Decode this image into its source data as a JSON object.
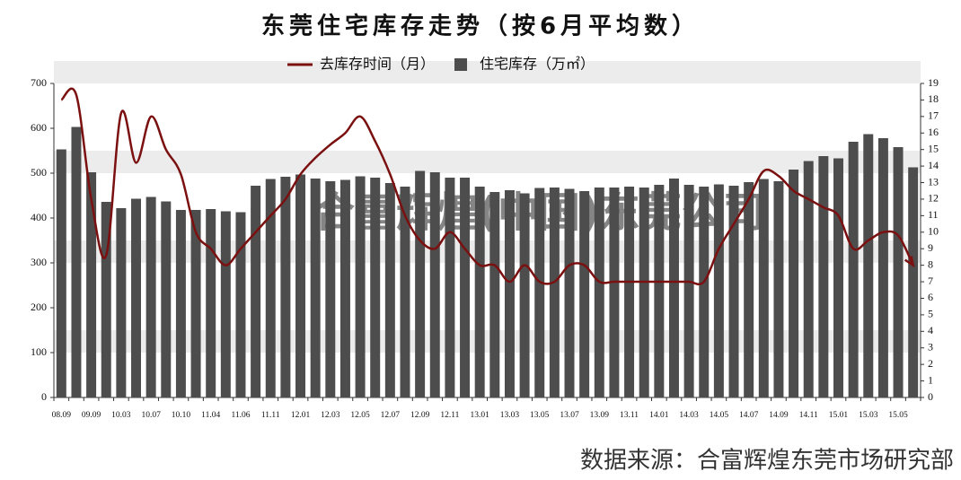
{
  "chart_data": {
    "type": "bar-line",
    "title": "东莞住宅库存走势（按6月平均数）",
    "watermark": "合富辉煌(中国)东莞公司",
    "source": "数据来源：合富辉煌东莞市场研究部",
    "categories": [
      "08.09",
      null,
      "09.09",
      null,
      "10.03",
      null,
      "10.07",
      null,
      "10.10",
      null,
      "11.04",
      null,
      "11.06",
      null,
      "11.11",
      null,
      "12.01",
      null,
      "12.03",
      null,
      "12.05",
      null,
      "12.07",
      null,
      "12.09",
      null,
      "12.11",
      null,
      "13.01",
      null,
      "13.03",
      null,
      "13.05",
      null,
      "13.07",
      null,
      "13.09",
      null,
      "13.11",
      null,
      "14.01",
      null,
      "14.03",
      null,
      "14.05",
      null,
      "14.07",
      null,
      "14.09",
      null,
      "14.11",
      null,
      "15.01",
      null,
      "15.03",
      null,
      "15.05",
      null
    ],
    "series": [
      {
        "name": "住宅库存（万㎡）",
        "type": "bar",
        "axis": "y",
        "color": "#4d4d4d",
        "values": [
          553,
          603,
          502,
          436,
          422,
          443,
          447,
          437,
          418,
          418,
          420,
          415,
          413,
          472,
          487,
          492,
          497,
          488,
          482,
          485,
          493,
          490,
          478,
          470,
          505,
          502,
          490,
          490,
          470,
          458,
          462,
          455,
          467,
          468,
          465,
          460,
          468,
          468,
          470,
          468,
          474,
          488,
          474,
          470,
          475,
          472,
          480,
          487,
          482,
          508,
          527,
          538,
          533,
          570,
          587,
          578,
          558,
          513
        ]
      },
      {
        "name": "去库存时间（月）",
        "type": "line",
        "axis": "y2",
        "color": "#7b1010",
        "values": [
          18,
          18.3,
          12,
          8.6,
          17.2,
          14.2,
          17,
          15,
          13.5,
          10,
          9,
          8,
          9,
          10,
          11,
          12,
          13.5,
          14.5,
          15.3,
          16,
          17,
          15.5,
          13.5,
          11,
          9.5,
          9,
          10,
          9,
          8,
          8,
          7,
          8,
          7,
          7,
          8,
          8,
          7,
          7,
          7,
          7,
          7,
          7,
          7,
          7,
          9,
          10.5,
          12,
          13.7,
          13.4,
          12.5,
          12,
          11.5,
          11,
          9,
          9.5,
          10,
          9.8,
          8
        ]
      }
    ],
    "ylim": [
      0,
      700
    ],
    "yticks": [
      0,
      100,
      200,
      300,
      400,
      500,
      600,
      700
    ],
    "y2lim": [
      0,
      19
    ],
    "y2ticks": [
      0,
      1,
      2,
      3,
      4,
      5,
      6,
      7,
      8,
      9,
      10,
      11,
      12,
      13,
      14,
      15,
      16,
      17,
      18,
      19
    ],
    "legend": "top"
  }
}
